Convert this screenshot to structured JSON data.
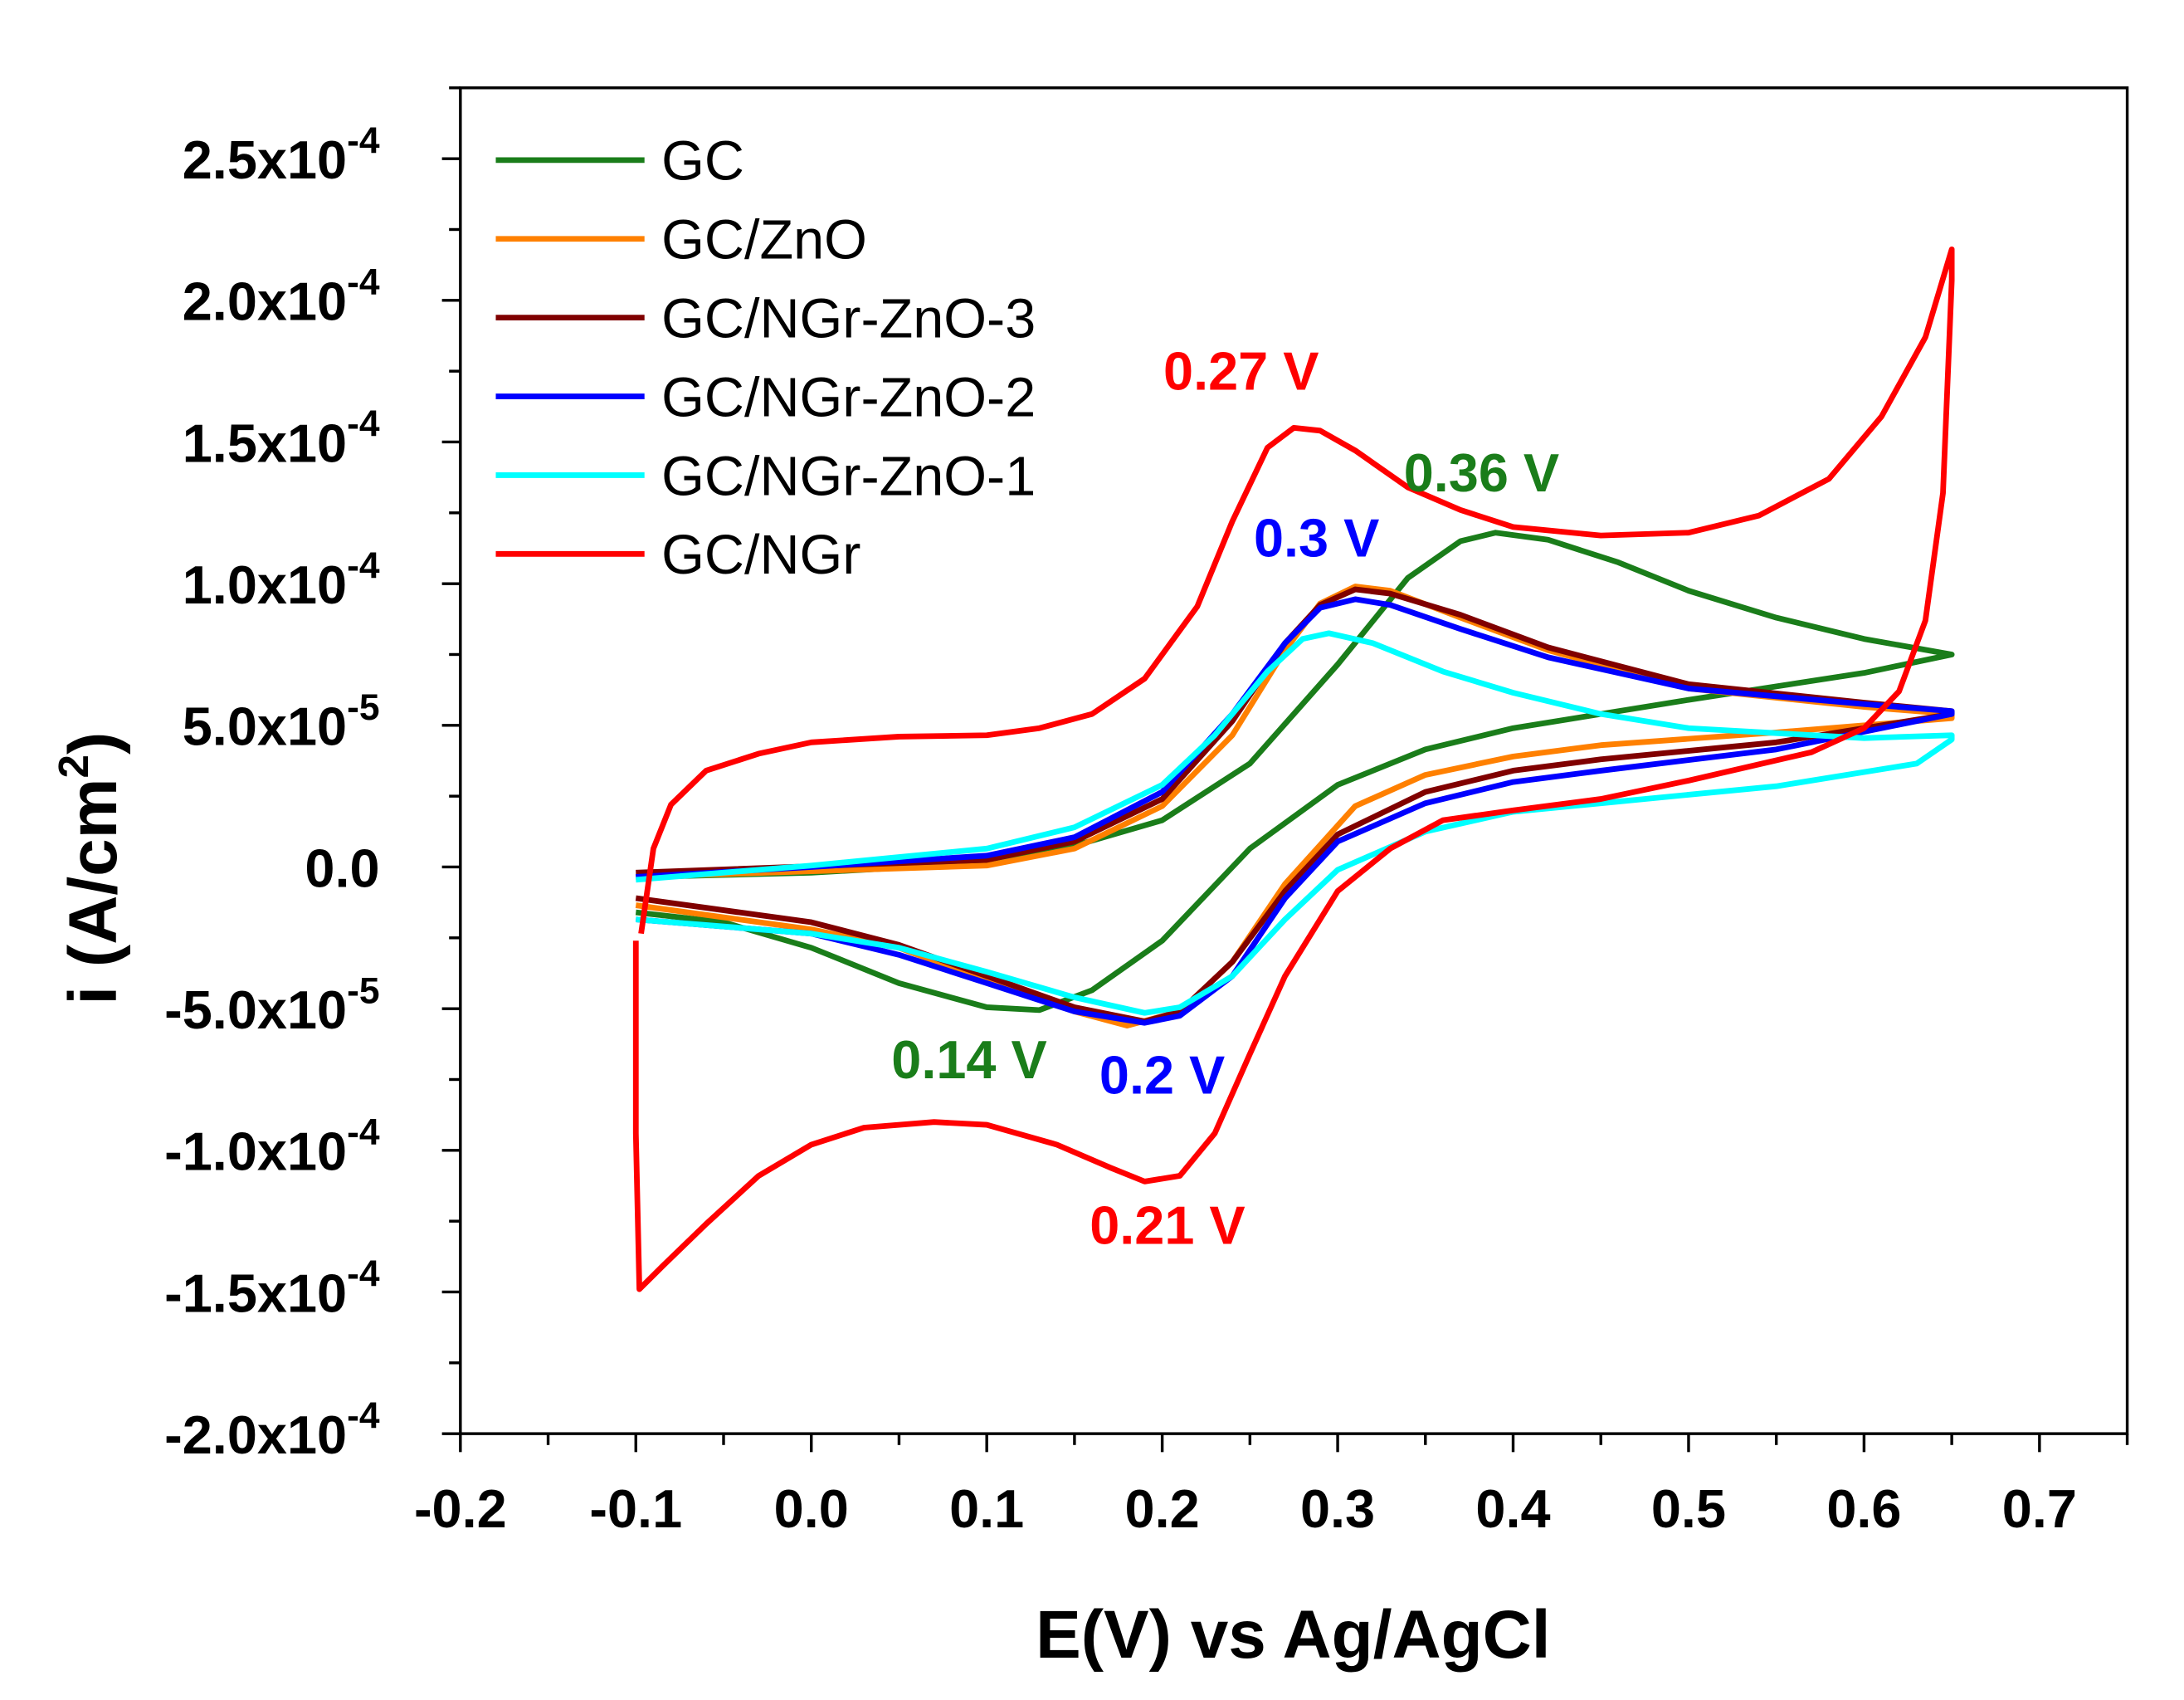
{
  "chart_data": {
    "type": "line",
    "title": "",
    "xlabel": "E(V) vs Ag/AgCl",
    "ylabel": "i (A/cm2)",
    "ylabel_parts": {
      "main": "i (A/cm",
      "sup": "2",
      "end": ")"
    },
    "xlim": [
      -0.2,
      0.75
    ],
    "ylim": [
      -0.0002,
      0.000275
    ],
    "y_value_unit": "1e-5 A/cm2",
    "x_ticks": [
      {
        "value": -0.2,
        "label": "-0.2"
      },
      {
        "value": -0.1,
        "label": "-0.1"
      },
      {
        "value": 0.0,
        "label": "0.0"
      },
      {
        "value": 0.1,
        "label": "0.1"
      },
      {
        "value": 0.2,
        "label": "0.2"
      },
      {
        "value": 0.3,
        "label": "0.3"
      },
      {
        "value": 0.4,
        "label": "0.4"
      },
      {
        "value": 0.5,
        "label": "0.5"
      },
      {
        "value": 0.6,
        "label": "0.6"
      },
      {
        "value": 0.7,
        "label": "0.7"
      }
    ],
    "y_ticks": [
      {
        "value": 25,
        "mant": "2.5x10",
        "exp": "-4"
      },
      {
        "value": 20,
        "mant": "2.0x10",
        "exp": "-4"
      },
      {
        "value": 15,
        "mant": "1.5x10",
        "exp": "-4"
      },
      {
        "value": 10,
        "mant": "1.0x10",
        "exp": "-4"
      },
      {
        "value": 5,
        "mant": "5.0x10",
        "exp": "-5"
      },
      {
        "value": 0,
        "mant": "0.0",
        "exp": ""
      },
      {
        "value": -5,
        "mant": "-5.0x10",
        "exp": "-5"
      },
      {
        "value": -10,
        "mant": "-1.0x10",
        "exp": "-4"
      },
      {
        "value": -15,
        "mant": "-1.5x10",
        "exp": "-4"
      },
      {
        "value": -20,
        "mant": "-2.0x10",
        "exp": "-4"
      }
    ],
    "grid": false,
    "legend_position": "top-left",
    "series": [
      {
        "name": "GC",
        "color": "#1a7d1a",
        "points": [
          [
            -0.095,
            -0.35
          ],
          [
            0.0,
            -0.2
          ],
          [
            0.1,
            0.15
          ],
          [
            0.15,
            0.75
          ],
          [
            0.2,
            1.65
          ],
          [
            0.25,
            3.65
          ],
          [
            0.3,
            7.15
          ],
          [
            0.34,
            10.2
          ],
          [
            0.37,
            11.5
          ],
          [
            0.39,
            11.8
          ],
          [
            0.42,
            11.55
          ],
          [
            0.46,
            10.75
          ],
          [
            0.5,
            9.75
          ],
          [
            0.55,
            8.8
          ],
          [
            0.6,
            8.05
          ],
          [
            0.65,
            7.5
          ],
          [
            0.6,
            6.85
          ],
          [
            0.5,
            5.9
          ],
          [
            0.4,
            4.9
          ],
          [
            0.35,
            4.15
          ],
          [
            0.3,
            2.9
          ],
          [
            0.25,
            0.65
          ],
          [
            0.2,
            -2.6
          ],
          [
            0.16,
            -4.35
          ],
          [
            0.13,
            -5.05
          ],
          [
            0.1,
            -4.95
          ],
          [
            0.05,
            -4.1
          ],
          [
            0.0,
            -2.85
          ],
          [
            -0.05,
            -1.95
          ],
          [
            -0.1,
            -1.6
          ]
        ]
      },
      {
        "name": "GC/ZnO",
        "color": "#ff8000",
        "points": [
          [
            -0.1,
            -0.35
          ],
          [
            0.1,
            0.05
          ],
          [
            0.15,
            0.65
          ],
          [
            0.2,
            2.15
          ],
          [
            0.24,
            4.65
          ],
          [
            0.27,
            7.65
          ],
          [
            0.29,
            9.3
          ],
          [
            0.31,
            9.9
          ],
          [
            0.33,
            9.75
          ],
          [
            0.37,
            8.8
          ],
          [
            0.42,
            7.65
          ],
          [
            0.5,
            6.3
          ],
          [
            0.6,
            5.65
          ],
          [
            0.65,
            5.4
          ],
          [
            0.65,
            5.25
          ],
          [
            0.55,
            4.75
          ],
          [
            0.45,
            4.3
          ],
          [
            0.4,
            3.9
          ],
          [
            0.35,
            3.25
          ],
          [
            0.31,
            2.15
          ],
          [
            0.27,
            -0.6
          ],
          [
            0.24,
            -3.35
          ],
          [
            0.21,
            -5.1
          ],
          [
            0.18,
            -5.6
          ],
          [
            0.15,
            -5.1
          ],
          [
            0.1,
            -4.0
          ],
          [
            0.05,
            -2.85
          ],
          [
            0.0,
            -2.2
          ],
          [
            -0.1,
            -1.35
          ]
        ]
      },
      {
        "name": "GC/NGr-ZnO-3",
        "color": "#800000",
        "points": [
          [
            -0.1,
            -0.2
          ],
          [
            0.1,
            0.25
          ],
          [
            0.15,
            0.9
          ],
          [
            0.2,
            2.4
          ],
          [
            0.24,
            5.15
          ],
          [
            0.27,
            7.9
          ],
          [
            0.29,
            9.25
          ],
          [
            0.31,
            9.8
          ],
          [
            0.33,
            9.65
          ],
          [
            0.37,
            8.9
          ],
          [
            0.42,
            7.75
          ],
          [
            0.5,
            6.45
          ],
          [
            0.6,
            5.8
          ],
          [
            0.65,
            5.5
          ],
          [
            0.65,
            5.4
          ],
          [
            0.55,
            4.4
          ],
          [
            0.45,
            3.8
          ],
          [
            0.4,
            3.4
          ],
          [
            0.35,
            2.65
          ],
          [
            0.3,
            1.15
          ],
          [
            0.27,
            -0.85
          ],
          [
            0.24,
            -3.35
          ],
          [
            0.21,
            -5.1
          ],
          [
            0.19,
            -5.45
          ],
          [
            0.15,
            -4.95
          ],
          [
            0.1,
            -3.85
          ],
          [
            0.05,
            -2.75
          ],
          [
            0.0,
            -1.95
          ],
          [
            -0.1,
            -1.1
          ]
        ]
      },
      {
        "name": "GC/NGr-ZnO-2",
        "color": "#0000ff",
        "points": [
          [
            -0.1,
            -0.35
          ],
          [
            0.0,
            0.0
          ],
          [
            0.1,
            0.4
          ],
          [
            0.15,
            1.05
          ],
          [
            0.2,
            2.65
          ],
          [
            0.24,
            5.4
          ],
          [
            0.27,
            7.9
          ],
          [
            0.29,
            9.15
          ],
          [
            0.31,
            9.45
          ],
          [
            0.33,
            9.25
          ],
          [
            0.37,
            8.4
          ],
          [
            0.42,
            7.4
          ],
          [
            0.5,
            6.3
          ],
          [
            0.6,
            5.75
          ],
          [
            0.65,
            5.5
          ],
          [
            0.65,
            5.4
          ],
          [
            0.55,
            4.15
          ],
          [
            0.45,
            3.4
          ],
          [
            0.4,
            3.0
          ],
          [
            0.35,
            2.25
          ],
          [
            0.3,
            0.9
          ],
          [
            0.27,
            -1.1
          ],
          [
            0.24,
            -3.85
          ],
          [
            0.21,
            -5.25
          ],
          [
            0.19,
            -5.5
          ],
          [
            0.15,
            -5.1
          ],
          [
            0.1,
            -4.1
          ],
          [
            0.05,
            -3.1
          ],
          [
            0.0,
            -2.35
          ],
          [
            -0.1,
            -1.85
          ]
        ]
      },
      {
        "name": "GC/NGr-ZnO-1",
        "color": "#00ffff",
        "points": [
          [
            -0.1,
            -0.45
          ],
          [
            0.0,
            0.05
          ],
          [
            0.1,
            0.65
          ],
          [
            0.15,
            1.4
          ],
          [
            0.2,
            2.9
          ],
          [
            0.23,
            4.65
          ],
          [
            0.26,
            6.9
          ],
          [
            0.28,
            8.05
          ],
          [
            0.295,
            8.25
          ],
          [
            0.32,
            7.9
          ],
          [
            0.36,
            6.9
          ],
          [
            0.4,
            6.15
          ],
          [
            0.45,
            5.4
          ],
          [
            0.5,
            4.9
          ],
          [
            0.6,
            4.55
          ],
          [
            0.65,
            4.65
          ],
          [
            0.65,
            4.5
          ],
          [
            0.63,
            3.65
          ],
          [
            0.55,
            2.85
          ],
          [
            0.45,
            2.25
          ],
          [
            0.4,
            1.95
          ],
          [
            0.35,
            1.25
          ],
          [
            0.3,
            -0.1
          ],
          [
            0.27,
            -1.85
          ],
          [
            0.24,
            -3.85
          ],
          [
            0.21,
            -4.95
          ],
          [
            0.19,
            -5.15
          ],
          [
            0.15,
            -4.6
          ],
          [
            0.1,
            -3.7
          ],
          [
            0.05,
            -2.85
          ],
          [
            0.0,
            -2.35
          ],
          [
            -0.1,
            -1.85
          ]
        ]
      },
      {
        "name": "GC/NGr",
        "color": "#ff0000",
        "points": [
          [
            -0.097,
            -2.35
          ],
          [
            -0.09,
            0.65
          ],
          [
            -0.08,
            2.2
          ],
          [
            -0.06,
            3.4
          ],
          [
            -0.03,
            4.0
          ],
          [
            0.0,
            4.4
          ],
          [
            0.05,
            4.6
          ],
          [
            0.1,
            4.65
          ],
          [
            0.13,
            4.9
          ],
          [
            0.16,
            5.4
          ],
          [
            0.19,
            6.65
          ],
          [
            0.22,
            9.2
          ],
          [
            0.24,
            12.2
          ],
          [
            0.26,
            14.8
          ],
          [
            0.275,
            15.5
          ],
          [
            0.29,
            15.4
          ],
          [
            0.31,
            14.7
          ],
          [
            0.34,
            13.4
          ],
          [
            0.37,
            12.6
          ],
          [
            0.4,
            12.0
          ],
          [
            0.45,
            11.7
          ],
          [
            0.5,
            11.8
          ],
          [
            0.54,
            12.4
          ],
          [
            0.58,
            13.7
          ],
          [
            0.61,
            15.9
          ],
          [
            0.635,
            18.7
          ],
          [
            0.65,
            21.8
          ],
          [
            0.65,
            20.7
          ],
          [
            0.645,
            13.2
          ],
          [
            0.635,
            8.7
          ],
          [
            0.62,
            6.2
          ],
          [
            0.6,
            4.9
          ],
          [
            0.57,
            4.05
          ],
          [
            0.5,
            3.05
          ],
          [
            0.45,
            2.4
          ],
          [
            0.4,
            2.0
          ],
          [
            0.36,
            1.65
          ],
          [
            0.33,
            0.65
          ],
          [
            0.3,
            -0.85
          ],
          [
            0.27,
            -3.85
          ],
          [
            0.25,
            -6.6
          ],
          [
            0.23,
            -9.4
          ],
          [
            0.21,
            -10.9
          ],
          [
            0.19,
            -11.1
          ],
          [
            0.17,
            -10.6
          ],
          [
            0.14,
            -9.8
          ],
          [
            0.1,
            -9.1
          ],
          [
            0.07,
            -9.0
          ],
          [
            0.03,
            -9.2
          ],
          [
            0.0,
            -9.8
          ],
          [
            -0.03,
            -10.9
          ],
          [
            -0.06,
            -12.6
          ],
          [
            -0.085,
            -14.1
          ],
          [
            -0.098,
            -14.9
          ],
          [
            -0.1,
            -9.4
          ],
          [
            -0.1,
            -2.6
          ]
        ]
      }
    ],
    "annotations": [
      {
        "text": "0.27 V",
        "color": "#ff0000",
        "x": 0.245,
        "y": 17.5
      },
      {
        "text": "0.36 V",
        "color": "#1a7d1a",
        "x": 0.382,
        "y": 13.9
      },
      {
        "text": "0.3 V",
        "color": "#0000ff",
        "x": 0.288,
        "y": 11.6
      },
      {
        "text": "0.14 V",
        "color": "#1a7d1a",
        "x": 0.09,
        "y": -6.8
      },
      {
        "text": "0.2 V",
        "color": "#0000ff",
        "x": 0.2,
        "y": -7.35
      },
      {
        "text": "0.21 V",
        "color": "#ff0000",
        "x": 0.203,
        "y": -12.65
      }
    ]
  }
}
